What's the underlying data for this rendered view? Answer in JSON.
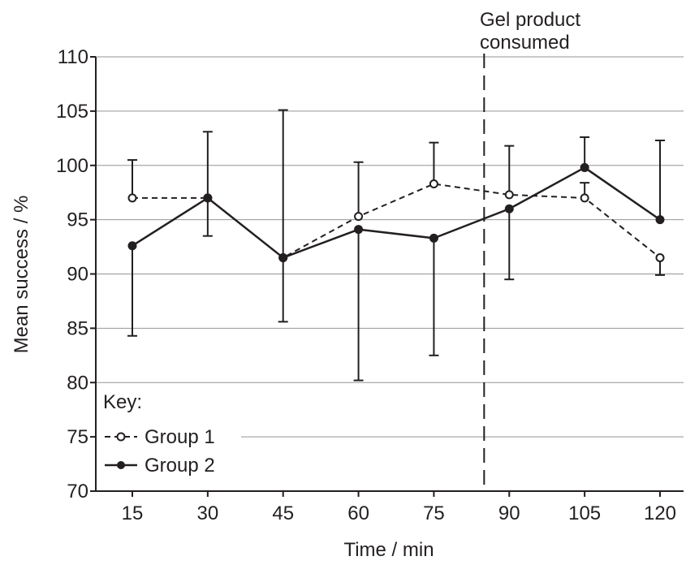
{
  "chart_data": {
    "type": "line",
    "title": "",
    "xlabel": "Time / min",
    "ylabel": "Mean success / %",
    "x": [
      15,
      30,
      45,
      60,
      75,
      90,
      105,
      120
    ],
    "xticks": [
      "15",
      "30",
      "45",
      "60",
      "75",
      "90",
      "105",
      "120"
    ],
    "ylim": [
      70,
      110
    ],
    "yticks": [
      "70",
      "75",
      "80",
      "85",
      "90",
      "95",
      "100",
      "105",
      "110"
    ],
    "grid": "horizontal",
    "legend": {
      "title": "Key:",
      "placement": "bottom-left"
    },
    "series": [
      {
        "name": "Group 1",
        "style": "dashed, open markers",
        "values": [
          97.0,
          97.0,
          91.5,
          95.3,
          98.3,
          97.3,
          97.0,
          91.5
        ],
        "error_upper": [
          100.5,
          103.1,
          91.5,
          100.3,
          102.1,
          101.8,
          98.4,
          91.5
        ],
        "error_lower": [
          97.0,
          97.0,
          91.5,
          95.3,
          98.3,
          97.3,
          97.0,
          89.9
        ]
      },
      {
        "name": "Group 2",
        "style": "solid, filled markers",
        "values": [
          92.6,
          97.0,
          91.5,
          94.1,
          93.3,
          96.0,
          99.8,
          95.0
        ],
        "error_upper": [
          92.6,
          97.0,
          105.1,
          94.1,
          93.3,
          96.0,
          102.6,
          102.3
        ],
        "error_lower": [
          84.3,
          93.5,
          85.6,
          80.2,
          82.5,
          89.5,
          99.8,
          95.0
        ]
      }
    ],
    "annotations": [
      {
        "text_line1": "Gel product",
        "text_line2": "consumed",
        "x": 85,
        "style": "dashed vertical line"
      }
    ],
    "colors": {
      "ink": "#231f20",
      "grid": "#939598",
      "background": "#ffffff"
    }
  }
}
